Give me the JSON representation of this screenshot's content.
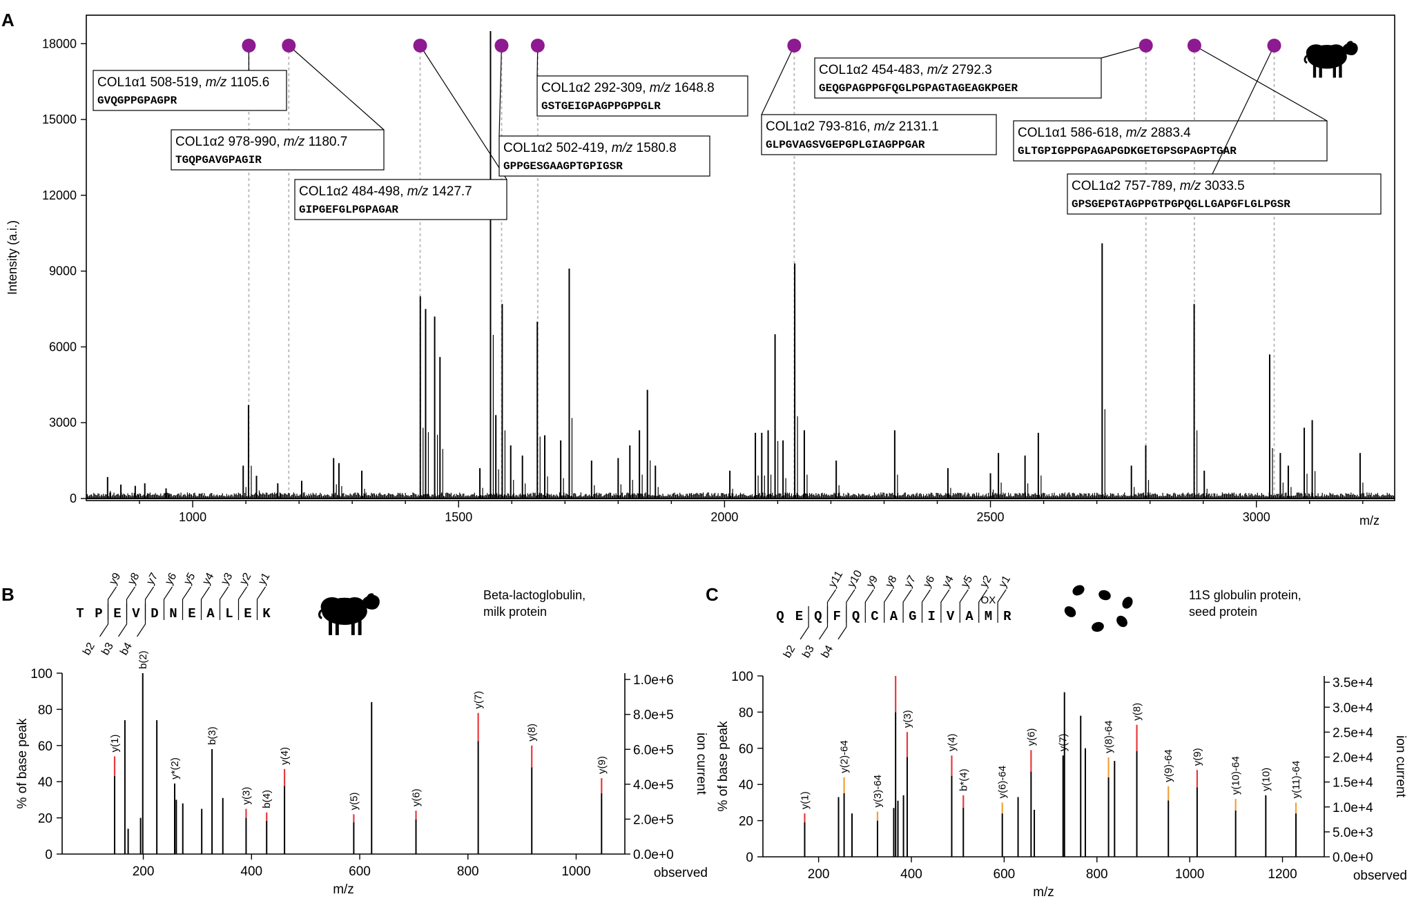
{
  "chart_data": [
    {
      "panel": "A",
      "type": "line",
      "xlabel": "m/z",
      "ylabel": "Intensity (a.i.)",
      "xlim": [
        800,
        3260
      ],
      "ylim": [
        0,
        18500
      ],
      "x_ticks": [
        1000,
        1500,
        2000,
        2500,
        3000
      ],
      "y_ticks": [
        0,
        3000,
        6000,
        9000,
        12000,
        15000,
        18000
      ],
      "organism_icon": "sheep-icon",
      "peaks": [
        [
          840,
          850
        ],
        [
          865,
          550
        ],
        [
          892,
          500
        ],
        [
          910,
          600
        ],
        [
          950,
          400
        ],
        [
          1095,
          1300
        ],
        [
          1105,
          3700
        ],
        [
          1120,
          900
        ],
        [
          1160,
          600
        ],
        [
          1205,
          700
        ],
        [
          1265,
          1600
        ],
        [
          1275,
          1400
        ],
        [
          1318,
          1100
        ],
        [
          1428,
          8000
        ],
        [
          1438,
          7500
        ],
        [
          1455,
          7200
        ],
        [
          1465,
          5600
        ],
        [
          1540,
          1200
        ],
        [
          1560,
          18500
        ],
        [
          1570,
          3300
        ],
        [
          1582,
          7700
        ],
        [
          1598,
          2100
        ],
        [
          1620,
          1700
        ],
        [
          1648,
          7000
        ],
        [
          1662,
          2500
        ],
        [
          1692,
          2300
        ],
        [
          1708,
          9100
        ],
        [
          1750,
          1500
        ],
        [
          1800,
          1600
        ],
        [
          1822,
          2100
        ],
        [
          1840,
          2700
        ],
        [
          1855,
          4300
        ],
        [
          1870,
          1300
        ],
        [
          2010,
          1100
        ],
        [
          2058,
          2600
        ],
        [
          2070,
          2600
        ],
        [
          2082,
          2700
        ],
        [
          2095,
          6500
        ],
        [
          2110,
          2300
        ],
        [
          2132,
          9300
        ],
        [
          2150,
          2700
        ],
        [
          2210,
          1500
        ],
        [
          2320,
          2700
        ],
        [
          2420,
          1200
        ],
        [
          2500,
          1000
        ],
        [
          2515,
          1800
        ],
        [
          2565,
          1700
        ],
        [
          2590,
          2600
        ],
        [
          2710,
          10100
        ],
        [
          2765,
          1300
        ],
        [
          2792,
          2100
        ],
        [
          2883,
          7700
        ],
        [
          2902,
          1100
        ],
        [
          3025,
          5700
        ],
        [
          3045,
          1800
        ],
        [
          3060,
          1300
        ],
        [
          3090,
          2800
        ],
        [
          3105,
          3100
        ],
        [
          3195,
          1800
        ]
      ],
      "annotation_peaks": [
        1105.6,
        1180.7,
        1427.7,
        1580.8,
        1648.8,
        2131.1,
        2792.3,
        2883.4,
        3033.5
      ],
      "annotations": [
        {
          "label": "COL1α1 508-519,",
          "mz_label": "m/z",
          "mz": "1105.6",
          "seq": "GVQGPPGPAGPR"
        },
        {
          "label": "COL1α2 978-990,",
          "mz_label": "m/z",
          "mz": "1180.7",
          "seq": "TGQPGAVGPAGIR"
        },
        {
          "label": "COL1α2 484-498,",
          "mz_label": "m/z",
          "mz": "1427.7",
          "seq": "GIPGEFGLPGPAGAR"
        },
        {
          "label": "COL1α2 502-419,",
          "mz_label": "m/z",
          "mz": "1580.8",
          "seq": "GPPGESGAAGPTGPIGSR"
        },
        {
          "label": "COL1α2 292-309,",
          "mz_label": "m/z",
          "mz": "1648.8",
          "seq": "GSTGEIGPAGPPGPPGLR"
        },
        {
          "label": "COL1α2 793-816,",
          "mz_label": "m/z",
          "mz": "2131.1",
          "seq": "GLPGVAGSVGEPGPLGIAGPPGAR"
        },
        {
          "label": "COL1α2 454-483,",
          "mz_label": "m/z",
          "mz": "2792.3",
          "seq": "GEQGPAGPPGFQGLPGPAGTAGEAGKPGER"
        },
        {
          "label": "COL1α1 586-618,",
          "mz_label": "m/z",
          "mz": "2883.4",
          "seq": "GLTGPIGPPGPAGAPGDKGETGPSGPAGPTGAR"
        },
        {
          "label": "COL1α2 757-789,",
          "mz_label": "m/z",
          "mz": "3033.5",
          "seq": "GPSGEPGTAGPPGTPGPQGLLGAPGFLGLPGSR"
        }
      ]
    },
    {
      "panel": "B",
      "type": "bar",
      "xlabel": "m/z",
      "ylabel": "% of base peak",
      "ylabel_right": "ion current",
      "xlim": [
        50,
        1090
      ],
      "ylim": [
        0,
        100
      ],
      "x_ticks": [
        200,
        400,
        600,
        800,
        1000
      ],
      "y_ticks": [
        0,
        20,
        40,
        60,
        80,
        100
      ],
      "right_ticks": [
        "0.0e+0",
        "2.0e+5",
        "4.0e+5",
        "6.0e+5",
        "8.0e+5",
        "1.0e+6"
      ],
      "corner_label": "observed",
      "protein": "Beta-lactoglobulin,",
      "protein_type": "milk protein",
      "organism_icon": "sheep-icon",
      "sequence": [
        "T",
        "P",
        "E",
        "V",
        "D",
        "N",
        "E",
        "A",
        "L",
        "E",
        "K"
      ],
      "y_ions": [
        "y9",
        "y8",
        "y7",
        "y6",
        "y5",
        "y4",
        "y3",
        "y2",
        "y1"
      ],
      "b_ions": [
        "b2",
        "b3",
        "b4"
      ],
      "peaks": [
        {
          "mz": 147,
          "v": 54,
          "c": "red",
          "label": "y(1)"
        },
        {
          "mz": 166,
          "v": 74
        },
        {
          "mz": 172,
          "v": 14
        },
        {
          "mz": 195,
          "v": 20
        },
        {
          "mz": 199,
          "v": 100,
          "label": "b(2)"
        },
        {
          "mz": 225,
          "v": 74
        },
        {
          "mz": 258,
          "v": 39,
          "label": "y*(2)"
        },
        {
          "mz": 261,
          "v": 30
        },
        {
          "mz": 273,
          "v": 28
        },
        {
          "mz": 308,
          "v": 25
        },
        {
          "mz": 327,
          "v": 58,
          "label": "b(3)"
        },
        {
          "mz": 347,
          "v": 31
        },
        {
          "mz": 390,
          "v": 25,
          "c": "red",
          "label": "y(3)"
        },
        {
          "mz": 428,
          "v": 23,
          "c": "red",
          "label": "b(4)"
        },
        {
          "mz": 461,
          "v": 47,
          "c": "red",
          "label": "y(4)"
        },
        {
          "mz": 589,
          "v": 22,
          "c": "red",
          "label": "y(5)"
        },
        {
          "mz": 622,
          "v": 84
        },
        {
          "mz": 704,
          "v": 24,
          "c": "red",
          "label": "y(6)"
        },
        {
          "mz": 819,
          "v": 78,
          "c": "red",
          "label": "y(7)"
        },
        {
          "mz": 918,
          "v": 60,
          "c": "red",
          "label": "y(8)"
        },
        {
          "mz": 1047,
          "v": 42,
          "c": "red",
          "label": "y(9)"
        }
      ]
    },
    {
      "panel": "C",
      "type": "bar",
      "xlabel": "m/z",
      "ylabel": "% of base peak",
      "ylabel_right": "ion current",
      "xlim": [
        80,
        1290
      ],
      "ylim": [
        0,
        100
      ],
      "x_ticks": [
        200,
        400,
        600,
        800,
        1000,
        1200
      ],
      "y_ticks": [
        0,
        20,
        40,
        60,
        80,
        100
      ],
      "right_ticks": [
        "0.0e+0",
        "5.0e+3",
        "1.0e+4",
        "1.5e+4",
        "2.0e+4",
        "2.5e+4",
        "3.0e+4",
        "3.5e+4"
      ],
      "corner_label": "observed",
      "protein": "11S globulin protein,",
      "protein_type": "seed protein",
      "organism_icon": "seeds-icon",
      "sequence": [
        "Q",
        "E",
        "Q",
        "F",
        "Q",
        "C",
        "A",
        "G",
        "I",
        "V",
        "A",
        "M",
        "R"
      ],
      "y_ions": [
        "y11",
        "y10",
        "y9",
        "y8",
        "y7",
        "y6",
        "y4",
        "y5",
        "y2",
        "y1"
      ],
      "b_ions": [
        "b2",
        "b3",
        "b4"
      ],
      "mod_label": "OX",
      "peaks": [
        {
          "mz": 170,
          "v": 24,
          "c": "red",
          "label": "y(1)"
        },
        {
          "mz": 243,
          "v": 33
        },
        {
          "mz": 255,
          "v": 44,
          "c": "orange",
          "label": "y(2)-64"
        },
        {
          "mz": 272,
          "v": 24
        },
        {
          "mz": 327,
          "v": 25,
          "c": "orange",
          "label": "y(3)-64"
        },
        {
          "mz": 362,
          "v": 27
        },
        {
          "mz": 366,
          "v": 100,
          "c": "red"
        },
        {
          "mz": 371,
          "v": 31
        },
        {
          "mz": 383,
          "v": 34
        },
        {
          "mz": 391,
          "v": 69,
          "c": "red",
          "label": "y(3)"
        },
        {
          "mz": 487,
          "v": 56,
          "c": "red",
          "label": "y(4)"
        },
        {
          "mz": 512,
          "v": 34,
          "c": "red",
          "label": "b*(4)"
        },
        {
          "mz": 596,
          "v": 30,
          "c": "orange",
          "label": "y(6)-64"
        },
        {
          "mz": 630,
          "v": 33
        },
        {
          "mz": 658,
          "v": 59,
          "c": "red",
          "label": "y(6)"
        },
        {
          "mz": 665,
          "v": 26
        },
        {
          "mz": 727,
          "v": 56,
          "label": "y(7)"
        },
        {
          "mz": 730,
          "v": 91
        },
        {
          "mz": 765,
          "v": 78
        },
        {
          "mz": 775,
          "v": 60
        },
        {
          "mz": 825,
          "v": 55,
          "c": "orange",
          "label": "y(8)-64"
        },
        {
          "mz": 838,
          "v": 53
        },
        {
          "mz": 886,
          "v": 73,
          "c": "red",
          "label": "y(8)"
        },
        {
          "mz": 954,
          "v": 39,
          "c": "orange",
          "label": "y(9)-64"
        },
        {
          "mz": 1016,
          "v": 48,
          "c": "red",
          "label": "y(9)"
        },
        {
          "mz": 1099,
          "v": 32,
          "c": "orange",
          "label": "y(10)-64"
        },
        {
          "mz": 1164,
          "v": 34,
          "label": "y(10)"
        },
        {
          "mz": 1229,
          "v": 30,
          "c": "orange",
          "label": "y(11)-64"
        }
      ]
    }
  ],
  "panel_labels": [
    "A",
    "B",
    "C"
  ],
  "colors": {
    "marker": "#8e1a91",
    "red": "#e8383d",
    "orange": "#f0a03a",
    "axis": "#000000",
    "guide": "#bdbdbd"
  }
}
